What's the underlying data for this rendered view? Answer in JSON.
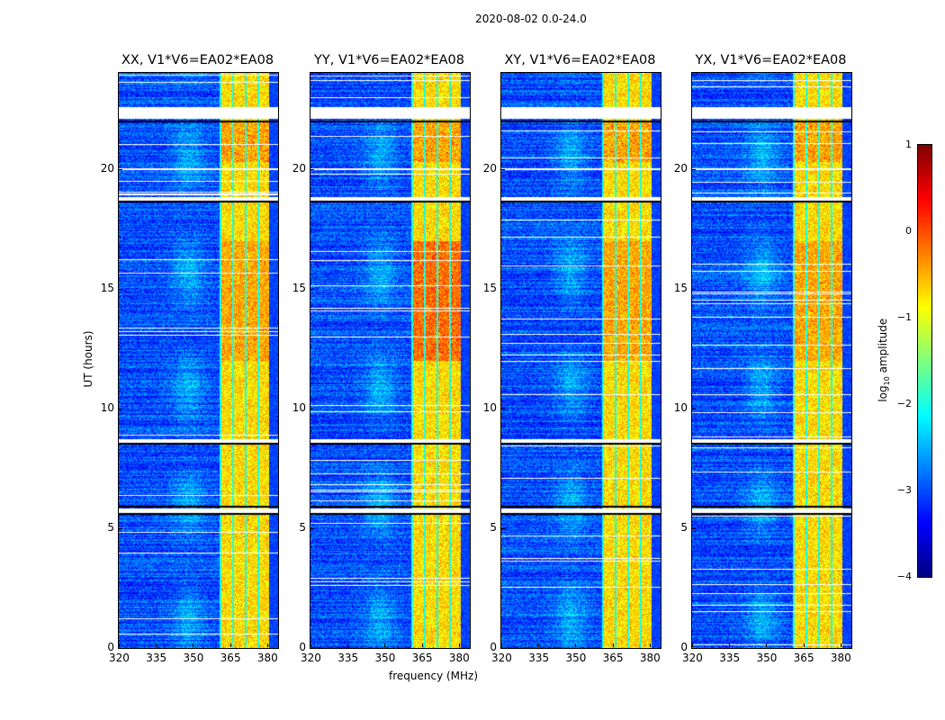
{
  "chart_data": {
    "type": "heatmap",
    "title": "2020-08-02 0.0-24.0",
    "xlabel": "frequency (MHz)",
    "ylabel": "UT (hours)",
    "xlim": [
      320,
      384.4
    ],
    "ylim": [
      0,
      24
    ],
    "xticks": [
      "320",
      "335",
      "350",
      "365",
      "380"
    ],
    "xtick_values": [
      320,
      335,
      350,
      365,
      380
    ],
    "yticks": [
      "0",
      "5",
      "10",
      "15",
      "20"
    ],
    "ytick_values": [
      0,
      5,
      10,
      15,
      20
    ],
    "panels": [
      {
        "title": "XX, V1*V6=EA02*EA08"
      },
      {
        "title": "YY, V1*V6=EA02*EA08"
      },
      {
        "title": "XY, V1*V6=EA02*EA08"
      },
      {
        "title": "YX, V1*V6=EA02*EA08"
      }
    ],
    "colorbar": {
      "label": "log",
      "label_sub": "10",
      "label_tail": " amplitude",
      "range": [
        -4,
        1
      ],
      "ticks": [
        "1",
        "0",
        "−1",
        "−2",
        "−3",
        "−4"
      ],
      "tick_values": [
        1,
        0,
        -1,
        -2,
        -3,
        -4
      ],
      "colormap": "jet"
    },
    "background_level": -3.0,
    "rfi_band_mhz": [
      360.7,
      380.4
    ],
    "strong_rfi_hours": [
      12,
      17
    ],
    "flagged_hours": [
      [
        22.1,
        22.6
      ],
      [
        19.95,
        20.05
      ],
      [
        18.7,
        18.85
      ],
      [
        8.6,
        8.75
      ],
      [
        5.65,
        5.85
      ]
    ],
    "black_lines_hours": [
      22.0,
      18.65,
      8.55,
      5.9,
      5.6
    ]
  }
}
